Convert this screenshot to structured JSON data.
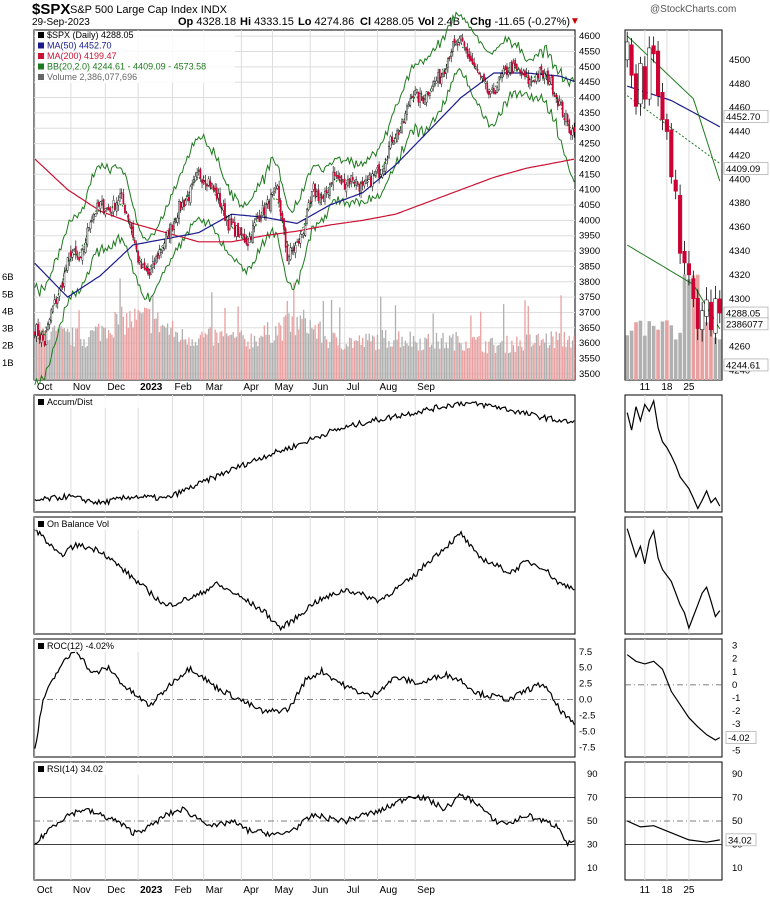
{
  "header": {
    "symbol": "$SPX",
    "name": "S&P 500 Large Cap Index",
    "exchange": "INDX",
    "date": "29-Sep-2023",
    "watermark": "@StockCharts.com",
    "open_label": "Op",
    "open": "4328.18",
    "high_label": "Hi",
    "high": "4333.15",
    "low_label": "Lo",
    "low": "4274.86",
    "close_label": "Cl",
    "close": "4288.05",
    "vol_label": "Vol",
    "vol": "2.4B",
    "chg_label": "Chg",
    "chg": "-11.65 (-0.27%)",
    "chg_arrow": "▼"
  },
  "colors": {
    "up_candle": "#ffffff",
    "down_candle": "#cc0033",
    "ma50": "#1a1a8c",
    "ma200": "#cc1133",
    "bb": "#1e7a1e",
    "bb_mid": "#1e7a1e",
    "volume_up": "#b0b0b0",
    "volume_down": "#e8a0a0",
    "indicator_line": "#000000",
    "grid": "#dddddd"
  },
  "chart_data": [
    {
      "panel": "price",
      "type": "candlestick",
      "legend": [
        {
          "label": "$SPX (Daily) 4288.05",
          "color": "#000000"
        },
        {
          "label": "MA(50) 4452.70",
          "color": "#1a1a8c"
        },
        {
          "label": "MA(200) 4199.47",
          "color": "#cc1133"
        },
        {
          "label": "BB(20,2.0) 4244.61 - 4409.09 - 4573.58",
          "color": "#1e7a1e"
        },
        {
          "label": "Volume 2,386,077,696",
          "color": "#666666"
        }
      ],
      "x_months": [
        "Oct",
        "Nov",
        "Dec",
        "2023",
        "Feb",
        "Mar",
        "Apr",
        "May",
        "Jun",
        "Jul",
        "Aug",
        "Sep"
      ],
      "y_ticks": [
        3500,
        3550,
        3600,
        3650,
        3700,
        3750,
        3800,
        3850,
        3900,
        3950,
        4000,
        4050,
        4100,
        4150,
        4200,
        4250,
        4300,
        4350,
        4400,
        4450,
        4500,
        4550,
        4600
      ],
      "ylim": [
        3480,
        4620
      ],
      "volume_ticks": [
        "1B",
        "2B",
        "3B",
        "4B",
        "5B",
        "6B"
      ],
      "volume_lim": [
        0,
        7
      ],
      "close_anchors": [
        [
          0,
          3650
        ],
        [
          6,
          3600
        ],
        [
          10,
          3700
        ],
        [
          16,
          3780
        ],
        [
          22,
          3900
        ],
        [
          28,
          3860
        ],
        [
          34,
          4010
        ],
        [
          40,
          4050
        ],
        [
          46,
          4030
        ],
        [
          52,
          4080
        ],
        [
          58,
          4000
        ],
        [
          64,
          3850
        ],
        [
          70,
          3820
        ],
        [
          76,
          3900
        ],
        [
          82,
          3960
        ],
        [
          88,
          4040
        ],
        [
          94,
          4080
        ],
        [
          100,
          4150
        ],
        [
          106,
          4130
        ],
        [
          112,
          4070
        ],
        [
          118,
          3990
        ],
        [
          124,
          3960
        ],
        [
          130,
          3930
        ],
        [
          136,
          4010
        ],
        [
          142,
          4050
        ],
        [
          148,
          4100
        ],
        [
          154,
          3880
        ],
        [
          160,
          3920
        ],
        [
          164,
          3970
        ],
        [
          170,
          4100
        ],
        [
          176,
          4060
        ],
        [
          182,
          4150
        ],
        [
          188,
          4120
        ],
        [
          194,
          4140
        ],
        [
          200,
          4100
        ],
        [
          206,
          4140
        ],
        [
          212,
          4170
        ],
        [
          218,
          4270
        ],
        [
          224,
          4300
        ],
        [
          230,
          4420
        ],
        [
          236,
          4390
        ],
        [
          242,
          4440
        ],
        [
          248,
          4470
        ],
        [
          254,
          4560
        ],
        [
          260,
          4580
        ],
        [
          266,
          4520
        ],
        [
          272,
          4460
        ],
        [
          278,
          4400
        ],
        [
          284,
          4460
        ],
        [
          290,
          4500
        ],
        [
          296,
          4480
        ],
        [
          302,
          4450
        ],
        [
          308,
          4480
        ],
        [
          314,
          4460
        ],
        [
          320,
          4380
        ],
        [
          326,
          4300
        ],
        [
          329,
          4288
        ]
      ],
      "ma50_anchors": [
        [
          0,
          3860
        ],
        [
          20,
          3750
        ],
        [
          40,
          3820
        ],
        [
          60,
          3920
        ],
        [
          80,
          3940
        ],
        [
          100,
          3960
        ],
        [
          120,
          4020
        ],
        [
          140,
          4010
        ],
        [
          160,
          3990
        ],
        [
          180,
          4050
        ],
        [
          200,
          4090
        ],
        [
          220,
          4180
        ],
        [
          240,
          4290
        ],
        [
          260,
          4400
        ],
        [
          280,
          4480
        ],
        [
          300,
          4480
        ],
        [
          320,
          4470
        ],
        [
          329,
          4452.7
        ]
      ],
      "ma200_anchors": [
        [
          0,
          4200
        ],
        [
          20,
          4100
        ],
        [
          40,
          4030
        ],
        [
          60,
          3990
        ],
        [
          80,
          3960
        ],
        [
          100,
          3930
        ],
        [
          120,
          3930
        ],
        [
          140,
          3950
        ],
        [
          160,
          3965
        ],
        [
          180,
          3985
        ],
        [
          200,
          4000
        ],
        [
          220,
          4020
        ],
        [
          240,
          4060
        ],
        [
          260,
          4100
        ],
        [
          280,
          4140
        ],
        [
          300,
          4170
        ],
        [
          320,
          4190
        ],
        [
          329,
          4199.47
        ]
      ],
      "bb_width_anchors": [
        [
          0,
          150
        ],
        [
          20,
          120
        ],
        [
          40,
          140
        ],
        [
          60,
          100
        ],
        [
          80,
          90
        ],
        [
          100,
          140
        ],
        [
          120,
          100
        ],
        [
          140,
          110
        ],
        [
          160,
          130
        ],
        [
          180,
          70
        ],
        [
          200,
          60
        ],
        [
          220,
          90
        ],
        [
          240,
          120
        ],
        [
          260,
          90
        ],
        [
          280,
          120
        ],
        [
          300,
          60
        ],
        [
          320,
          100
        ],
        [
          329,
          164.5
        ]
      ],
      "volume_anchors": [
        [
          0,
          2.8
        ],
        [
          30,
          2.4
        ],
        [
          50,
          3.4
        ],
        [
          70,
          3.6
        ],
        [
          90,
          2.5
        ],
        [
          110,
          2.5
        ],
        [
          130,
          2.3
        ],
        [
          150,
          3.0
        ],
        [
          165,
          3.4
        ],
        [
          180,
          2.3
        ],
        [
          200,
          2.2
        ],
        [
          220,
          2.5
        ],
        [
          240,
          2.2
        ],
        [
          260,
          2.3
        ],
        [
          280,
          2.0
        ],
        [
          300,
          2.2
        ],
        [
          320,
          2.4
        ],
        [
          329,
          2.39
        ]
      ]
    },
    {
      "panel": "accum_dist",
      "type": "line",
      "legend": [
        {
          "label": "Accum/Dist",
          "color": "#000000"
        }
      ],
      "anchors": [
        [
          0,
          0.1
        ],
        [
          20,
          0.14
        ],
        [
          40,
          0.08
        ],
        [
          60,
          0.14
        ],
        [
          80,
          0.12
        ],
        [
          100,
          0.25
        ],
        [
          120,
          0.38
        ],
        [
          140,
          0.5
        ],
        [
          160,
          0.6
        ],
        [
          180,
          0.72
        ],
        [
          200,
          0.8
        ],
        [
          220,
          0.86
        ],
        [
          240,
          0.92
        ],
        [
          260,
          0.98
        ],
        [
          280,
          0.95
        ],
        [
          300,
          0.88
        ],
        [
          320,
          0.82
        ],
        [
          329,
          0.8
        ]
      ]
    },
    {
      "panel": "obv",
      "type": "line",
      "legend": [
        {
          "label": "On Balance Vol",
          "color": "#000000"
        }
      ],
      "anchors": [
        [
          0,
          0.95
        ],
        [
          15,
          0.7
        ],
        [
          25,
          0.8
        ],
        [
          40,
          0.75
        ],
        [
          60,
          0.5
        ],
        [
          80,
          0.25
        ],
        [
          100,
          0.35
        ],
        [
          110,
          0.45
        ],
        [
          120,
          0.38
        ],
        [
          140,
          0.2
        ],
        [
          150,
          0.05
        ],
        [
          160,
          0.15
        ],
        [
          170,
          0.28
        ],
        [
          190,
          0.4
        ],
        [
          210,
          0.3
        ],
        [
          230,
          0.5
        ],
        [
          240,
          0.65
        ],
        [
          260,
          0.9
        ],
        [
          270,
          0.7
        ],
        [
          290,
          0.55
        ],
        [
          300,
          0.65
        ],
        [
          310,
          0.6
        ],
        [
          320,
          0.45
        ],
        [
          329,
          0.42
        ]
      ]
    },
    {
      "panel": "roc",
      "type": "line",
      "legend": [
        {
          "label": "ROC(12) -4.02%",
          "color": "#000000"
        }
      ],
      "y_ticks": [
        -7.5,
        -5.0,
        -2.5,
        0.0,
        2.5,
        5.0,
        7.5
      ],
      "ylim": [
        -9,
        9.5
      ],
      "anchors": [
        [
          0,
          -8.0
        ],
        [
          5,
          0.0
        ],
        [
          15,
          5.0
        ],
        [
          25,
          8.0
        ],
        [
          35,
          4.0
        ],
        [
          45,
          5.0
        ],
        [
          55,
          2.0
        ],
        [
          70,
          -1.0
        ],
        [
          85,
          3.0
        ],
        [
          95,
          5.0
        ],
        [
          110,
          2.0
        ],
        [
          125,
          0.0
        ],
        [
          140,
          -2.0
        ],
        [
          155,
          -1.5
        ],
        [
          165,
          3.0
        ],
        [
          175,
          4.5
        ],
        [
          190,
          2.0
        ],
        [
          205,
          0.5
        ],
        [
          220,
          3.5
        ],
        [
          235,
          2.5
        ],
        [
          250,
          4.0
        ],
        [
          260,
          3.0
        ],
        [
          270,
          1.0
        ],
        [
          280,
          0.5
        ],
        [
          290,
          0.0
        ],
        [
          300,
          1.5
        ],
        [
          310,
          2.5
        ],
        [
          320,
          -1.5
        ],
        [
          329,
          -4.02
        ]
      ]
    },
    {
      "panel": "rsi",
      "type": "line",
      "legend": [
        {
          "label": "RSI(14) 34.02",
          "color": "#000000"
        }
      ],
      "y_ticks": [
        10,
        30,
        50,
        70,
        90
      ],
      "ylim": [
        0,
        100
      ],
      "anchors": [
        [
          0,
          30.0
        ],
        [
          10,
          45.0
        ],
        [
          20,
          55.0
        ],
        [
          30,
          60.0
        ],
        [
          40,
          55.0
        ],
        [
          50,
          50.0
        ],
        [
          60,
          40.0
        ],
        [
          70,
          45.0
        ],
        [
          80,
          55.0
        ],
        [
          90,
          60.0
        ],
        [
          100,
          52.0
        ],
        [
          110,
          45.0
        ],
        [
          120,
          50.0
        ],
        [
          130,
          42.0
        ],
        [
          140,
          40.0
        ],
        [
          150,
          38.0
        ],
        [
          160,
          45.0
        ],
        [
          170,
          55.0
        ],
        [
          180,
          52.0
        ],
        [
          190,
          50.0
        ],
        [
          200,
          55.0
        ],
        [
          210,
          58.0
        ],
        [
          220,
          65.0
        ],
        [
          230,
          72.0
        ],
        [
          240,
          68.0
        ],
        [
          250,
          60.0
        ],
        [
          260,
          72.0
        ],
        [
          270,
          65.0
        ],
        [
          280,
          50.0
        ],
        [
          290,
          48.0
        ],
        [
          300,
          55.0
        ],
        [
          310,
          50.0
        ],
        [
          320,
          45.0
        ],
        [
          325,
          30.0
        ],
        [
          329,
          34.02
        ]
      ]
    },
    {
      "panel": "zoom_price",
      "type": "candlestick",
      "x_ticks": [
        "11",
        "18",
        "25"
      ],
      "y_ticks": [
        4240,
        4260,
        4280,
        4300,
        4320,
        4340,
        4360,
        4380,
        4400,
        4420,
        4440,
        4460,
        4480,
        4500
      ],
      "ylim": [
        4232,
        4525
      ],
      "value_labels": [
        {
          "label": "4452.70",
          "value": 4452.7
        },
        {
          "label": "4409.09",
          "value": 4409.09
        },
        {
          "label": "4288.05",
          "value": 4288.05
        },
        {
          "label": "2386077",
          "value": 4279
        },
        {
          "label": "4244.61",
          "value": 4244.61
        }
      ]
    },
    {
      "panel": "zoom_roc",
      "type": "line",
      "y_ticks": [
        -5,
        -4,
        -3,
        -2,
        -1,
        0,
        1,
        2,
        3
      ],
      "ylim": [
        -5.5,
        3.5
      ],
      "value_label": "-4.02",
      "anchors": [
        [
          0,
          2.3
        ],
        [
          2,
          1.8
        ],
        [
          4,
          1.6
        ],
        [
          6,
          1.8
        ],
        [
          8,
          1.2
        ],
        [
          10,
          -0.5
        ],
        [
          12,
          -1.5
        ],
        [
          14,
          -2.5
        ],
        [
          16,
          -3.2
        ],
        [
          18,
          -3.8
        ],
        [
          20,
          -4.2
        ],
        [
          21,
          -4.02
        ]
      ]
    },
    {
      "panel": "zoom_rsi",
      "type": "line",
      "y_ticks": [
        10,
        30,
        50,
        70,
        90
      ],
      "ylim": [
        0,
        100
      ],
      "value_label": "34.02",
      "anchors": [
        [
          0,
          50.0
        ],
        [
          3,
          45.0
        ],
        [
          6,
          46.0
        ],
        [
          10,
          40.0
        ],
        [
          14,
          34.0
        ],
        [
          18,
          32.0
        ],
        [
          21,
          34.02
        ]
      ]
    }
  ]
}
